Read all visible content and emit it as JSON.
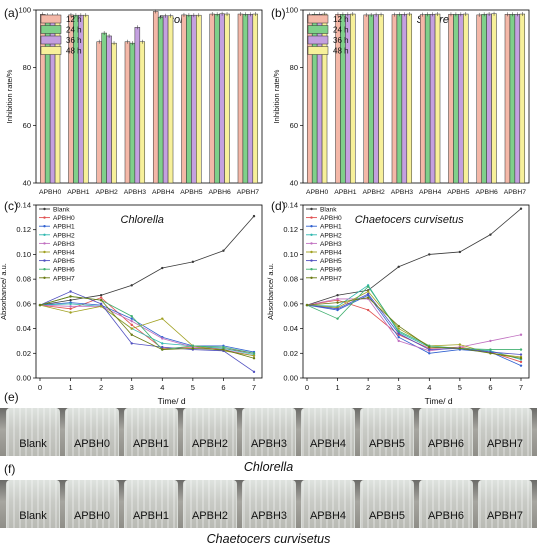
{
  "panel_labels": {
    "a": "(a)",
    "b": "(b)",
    "c": "(c)",
    "d": "(d)",
    "e": "(e)",
    "f": "(f)"
  },
  "photos": {
    "e": {
      "caption": "Chlorella",
      "labels": [
        "Blank",
        "APBH0",
        "APBH1",
        "APBH2",
        "APBH3",
        "APBH4",
        "APBH5",
        "APBH6",
        "APBH7"
      ]
    },
    "f": {
      "caption": "Chaetocers curvisetus",
      "labels": [
        "Blank",
        "APBH0",
        "APBH1",
        "APBH2",
        "APBH3",
        "APBH4",
        "APBH5",
        "APBH6",
        "APBH7"
      ]
    }
  },
  "colors": {
    "bars": [
      "#f4b8a8",
      "#7fd08a",
      "#c4a0e0",
      "#f7f09a"
    ],
    "lines": [
      "#3a3a3a",
      "#e05050",
      "#3060d0",
      "#30b8b0",
      "#c070c0",
      "#a0a020",
      "#5050c0",
      "#40b070",
      "#6a7a10"
    ]
  },
  "chart_data": [
    {
      "id": "a",
      "type": "bar",
      "title": "E.coli",
      "categories": [
        "APBH0",
        "APBH1",
        "APBH2",
        "APBH3",
        "APBH4",
        "APBH5",
        "APBH6",
        "APBH7"
      ],
      "series": [
        {
          "name": "12 h",
          "values": [
            98.5,
            98.3,
            89,
            89,
            99.5,
            98.3,
            98.6,
            98.6
          ]
        },
        {
          "name": "24 h",
          "values": [
            98.2,
            98.2,
            92,
            88.5,
            97.5,
            98.2,
            98.5,
            98.5
          ]
        },
        {
          "name": "36 h",
          "values": [
            98.2,
            98.2,
            91,
            94,
            98,
            98.2,
            98.7,
            98.5
          ]
        },
        {
          "name": "48 h",
          "values": [
            98.2,
            98.2,
            88.5,
            89,
            98,
            98.2,
            98.6,
            98.6
          ]
        }
      ],
      "ylabel": "Inhibition rate/%",
      "ylim": [
        40,
        100
      ],
      "yticks": [
        40,
        60,
        80,
        100
      ],
      "legend": "top-left"
    },
    {
      "id": "b",
      "type": "bar",
      "title": "S.aureus",
      "categories": [
        "APBH0",
        "APBH1",
        "APBH2",
        "APBH3",
        "APBH4",
        "APBH5",
        "APBH6",
        "APBH7"
      ],
      "series": [
        {
          "name": "12 h",
          "values": [
            98.4,
            98.5,
            98.3,
            98.4,
            98.4,
            98.5,
            98.3,
            98.5
          ]
        },
        {
          "name": "24 h",
          "values": [
            98.5,
            98.5,
            98.3,
            98.5,
            98.5,
            98.5,
            98.5,
            98.5
          ]
        },
        {
          "name": "36 h",
          "values": [
            98.5,
            98.5,
            98.4,
            98.5,
            98.5,
            98.5,
            98.6,
            98.5
          ]
        },
        {
          "name": "48 h",
          "values": [
            98.6,
            98.6,
            98.4,
            98.6,
            98.6,
            98.6,
            98.7,
            98.6
          ]
        }
      ],
      "ylabel": "Inhibition rate/%",
      "ylim": [
        40,
        100
      ],
      "yticks": [
        40,
        60,
        80,
        100
      ],
      "legend": "top-left"
    },
    {
      "id": "c",
      "type": "line",
      "title": "Chlorella",
      "x": [
        0,
        1,
        2,
        3,
        4,
        5,
        6,
        7
      ],
      "series": [
        {
          "name": "Blank",
          "values": [
            0.059,
            0.063,
            0.067,
            0.075,
            0.089,
            0.094,
            0.103,
            0.131
          ]
        },
        {
          "name": "APBH0",
          "values": [
            0.059,
            0.056,
            0.065,
            0.043,
            0.024,
            0.025,
            0.024,
            0.02
          ]
        },
        {
          "name": "APBH1",
          "values": [
            0.059,
            0.061,
            0.059,
            0.048,
            0.033,
            0.026,
            0.026,
            0.021
          ]
        },
        {
          "name": "APBH2",
          "values": [
            0.059,
            0.06,
            0.058,
            0.04,
            0.028,
            0.026,
            0.024,
            0.019
          ]
        },
        {
          "name": "APBH3",
          "values": [
            0.059,
            0.058,
            0.058,
            0.046,
            0.032,
            0.025,
            0.023,
            0.018
          ]
        },
        {
          "name": "APBH4",
          "values": [
            0.059,
            0.053,
            0.058,
            0.04,
            0.048,
            0.026,
            0.022,
            0.018
          ]
        },
        {
          "name": "APBH5",
          "values": [
            0.059,
            0.07,
            0.06,
            0.028,
            0.025,
            0.023,
            0.022,
            0.005
          ]
        },
        {
          "name": "APBH6",
          "values": [
            0.059,
            0.066,
            0.063,
            0.05,
            0.023,
            0.026,
            0.025,
            0.02
          ]
        },
        {
          "name": "APBH7",
          "values": [
            0.059,
            0.066,
            0.063,
            0.035,
            0.023,
            0.024,
            0.023,
            0.016
          ]
        }
      ],
      "xlabel": "Time/ d",
      "ylabel": "Absorbance/ a.u.",
      "xlim": [
        0,
        7
      ],
      "ylim": [
        0,
        0.14
      ],
      "yticks": [
        0.0,
        0.02,
        0.04,
        0.06,
        0.08,
        0.1,
        0.12,
        0.14
      ],
      "legend": "top-left"
    },
    {
      "id": "d",
      "type": "line",
      "title": "Chaetocers curvisetus",
      "x": [
        0,
        1,
        2,
        3,
        4,
        5,
        6,
        7
      ],
      "series": [
        {
          "name": "Blank",
          "values": [
            0.059,
            0.067,
            0.071,
            0.09,
            0.1,
            0.102,
            0.116,
            0.137
          ]
        },
        {
          "name": "APBH0",
          "values": [
            0.059,
            0.063,
            0.055,
            0.035,
            0.024,
            0.025,
            0.021,
            0.013
          ]
        },
        {
          "name": "APBH1",
          "values": [
            0.059,
            0.055,
            0.067,
            0.033,
            0.02,
            0.023,
            0.021,
            0.01
          ]
        },
        {
          "name": "APBH2",
          "values": [
            0.059,
            0.058,
            0.075,
            0.037,
            0.025,
            0.024,
            0.022,
            0.015
          ]
        },
        {
          "name": "APBH3",
          "values": [
            0.059,
            0.064,
            0.064,
            0.03,
            0.022,
            0.025,
            0.03,
            0.035
          ]
        },
        {
          "name": "APBH4",
          "values": [
            0.059,
            0.057,
            0.07,
            0.04,
            0.026,
            0.027,
            0.02,
            0.017
          ]
        },
        {
          "name": "APBH5",
          "values": [
            0.059,
            0.056,
            0.068,
            0.036,
            0.023,
            0.024,
            0.021,
            0.019
          ]
        },
        {
          "name": "APBH6",
          "values": [
            0.059,
            0.048,
            0.074,
            0.038,
            0.026,
            0.024,
            0.023,
            0.023
          ]
        },
        {
          "name": "APBH7",
          "values": [
            0.059,
            0.061,
            0.065,
            0.042,
            0.025,
            0.024,
            0.02,
            0.016
          ]
        }
      ],
      "xlabel": "Time/ d",
      "ylabel": "Absorbance/ a.u.",
      "xlim": [
        0,
        7
      ],
      "ylim": [
        0,
        0.14
      ],
      "yticks": [
        0.0,
        0.02,
        0.04,
        0.06,
        0.08,
        0.1,
        0.12,
        0.14
      ],
      "legend": "top-left"
    }
  ]
}
